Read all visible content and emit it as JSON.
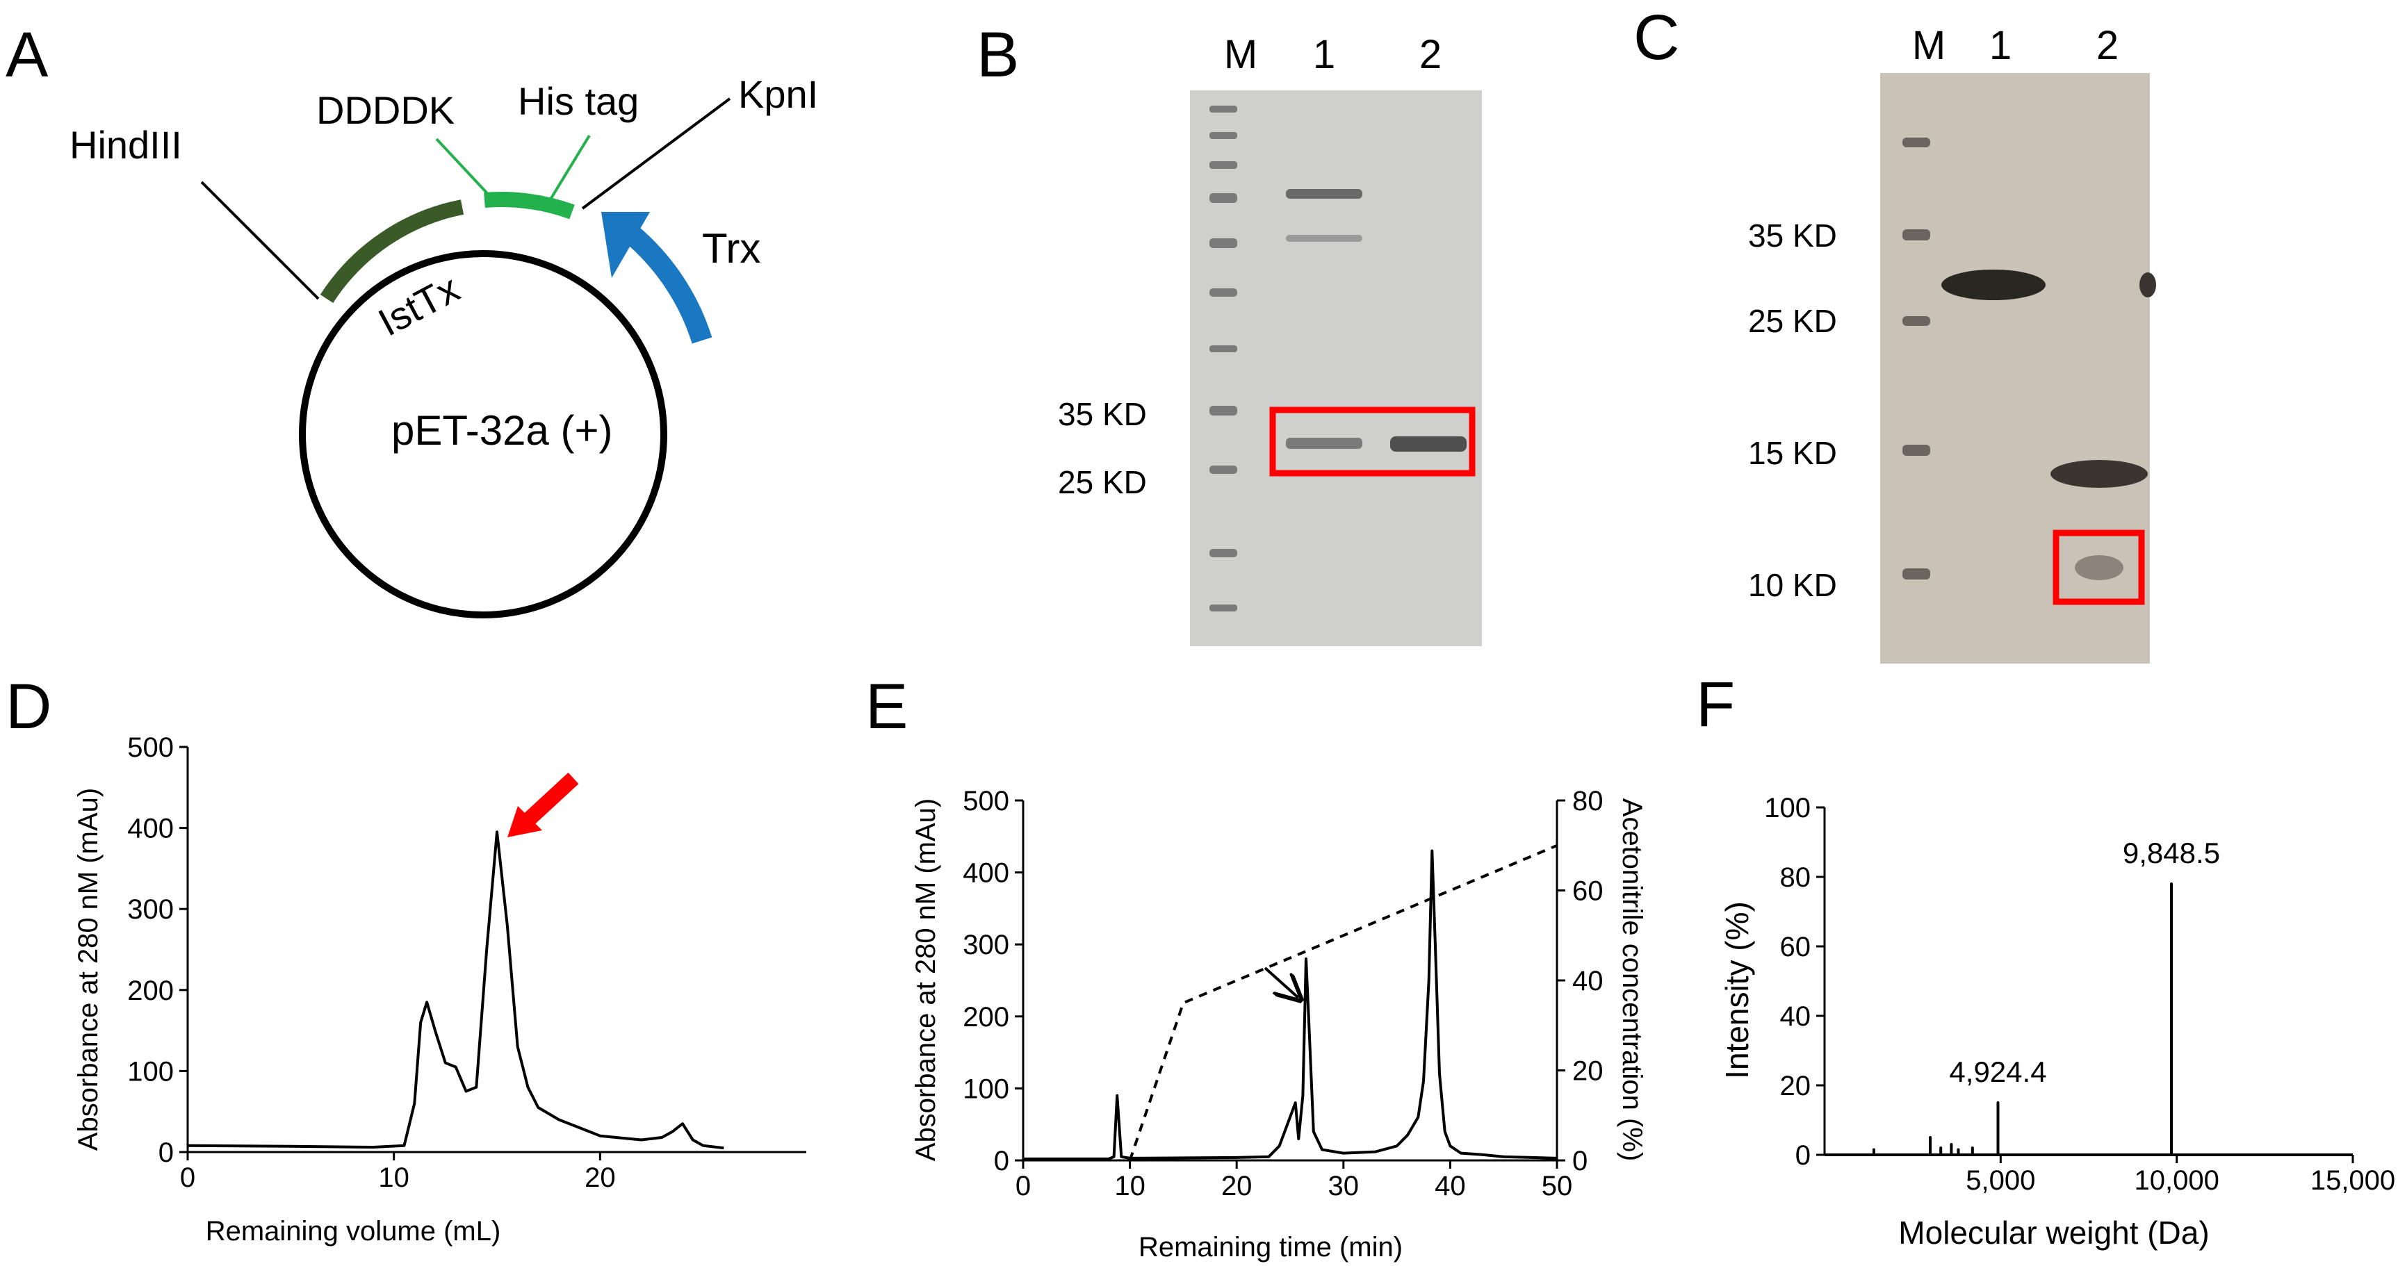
{
  "panels": {
    "A": {
      "letter": "A",
      "plasmid": "pET-32a (+)",
      "labels": {
        "hindiii": "HindIII",
        "ddddk": "DDDDK",
        "his_tag": "His tag",
        "kpni": "KpnI",
        "isttx": "IstTx",
        "trx": "Trx"
      },
      "colors": {
        "isttx": "#3a5a28",
        "tag": "#22b14c",
        "trx": "#1a78c2"
      }
    },
    "B": {
      "letter": "B",
      "lanes": [
        "M",
        "1",
        "2"
      ],
      "markers": [
        "35 KD",
        "25 KD"
      ]
    },
    "C": {
      "letter": "C",
      "lanes": [
        "M",
        "1",
        "2"
      ],
      "markers": [
        "35 KD",
        "25 KD",
        "15 KD",
        "10 KD"
      ]
    },
    "D": {
      "letter": "D"
    },
    "E": {
      "letter": "E"
    },
    "F": {
      "letter": "F"
    }
  },
  "chart_data": [
    {
      "panel": "D",
      "type": "line",
      "xlabel": "Remaining volume (mL)",
      "ylabel": "Absorbance at 280 nM (mAu)",
      "xlim": [
        0,
        30
      ],
      "ylim": [
        0,
        500
      ],
      "xticks": [
        "0",
        "10",
        "20"
      ],
      "yticks": [
        "0",
        "100",
        "200",
        "300",
        "400",
        "500"
      ],
      "annotation": "red arrow pointing at peak ~15 mL",
      "series": [
        {
          "name": "A280",
          "x": [
            0,
            5,
            9,
            10.5,
            11,
            11.3,
            11.6,
            12,
            12.5,
            13,
            13.5,
            14,
            14.5,
            15,
            15.5,
            16,
            16.5,
            17,
            18,
            19,
            20,
            22,
            23,
            23.5,
            24,
            24.5,
            25,
            26
          ],
          "y": [
            8,
            7,
            6,
            8,
            60,
            160,
            185,
            150,
            110,
            105,
            75,
            80,
            250,
            395,
            280,
            130,
            80,
            55,
            40,
            30,
            20,
            15,
            18,
            25,
            35,
            15,
            8,
            5
          ]
        }
      ]
    },
    {
      "panel": "E",
      "type": "line",
      "xlabel": "Remaining time (min)",
      "ylabel": "Absorbance at 280 nM (mAu)",
      "y2label": "Acetonitrile concentration (%)",
      "xlim": [
        0,
        50
      ],
      "ylim": [
        0,
        500
      ],
      "y2lim": [
        0,
        80
      ],
      "xticks": [
        "0",
        "10",
        "20",
        "30",
        "40",
        "50"
      ],
      "yticks": [
        "0",
        "100",
        "200",
        "300",
        "400",
        "500"
      ],
      "y2ticks": [
        "0",
        "20",
        "40",
        "60",
        "80"
      ],
      "annotation": "black arrow pointing at peak ~26.5 min",
      "series": [
        {
          "name": "A280",
          "x": [
            0,
            8,
            8.5,
            8.8,
            9.2,
            10,
            20,
            23,
            24,
            25,
            25.5,
            25.8,
            26.2,
            26.5,
            26.8,
            27.2,
            28,
            30,
            33,
            35,
            36,
            37,
            37.5,
            38,
            38.3,
            38.6,
            39,
            39.5,
            40,
            41,
            43,
            45,
            50
          ],
          "y": [
            2,
            2,
            5,
            90,
            5,
            3,
            4,
            5,
            20,
            60,
            80,
            30,
            90,
            280,
            180,
            40,
            15,
            10,
            12,
            20,
            35,
            60,
            110,
            250,
            430,
            300,
            120,
            40,
            20,
            10,
            8,
            5,
            3
          ]
        },
        {
          "name": "Acetonitrile (%)",
          "axis": "right",
          "style": "dashed",
          "x": [
            10,
            15,
            50
          ],
          "y": [
            0,
            35,
            70
          ]
        }
      ]
    },
    {
      "panel": "F",
      "type": "line",
      "xlabel": "Molecular weight (Da)",
      "ylabel": "Intensity (%)",
      "xlim": [
        0,
        15000
      ],
      "ylim": [
        0,
        100
      ],
      "xticks": [
        "5,000",
        "10,000",
        "15,000"
      ],
      "yticks": [
        "0",
        "20",
        "40",
        "60",
        "80",
        "100"
      ],
      "peak_labels": [
        {
          "x": 4924.4,
          "y": 15,
          "label": "4,924.4"
        },
        {
          "x": 9848.5,
          "y": 78,
          "label": "9,848.5"
        }
      ],
      "series": [
        {
          "name": "Intensity",
          "x": [
            0,
            1400,
            1400,
            1400,
            3000,
            3000,
            3000,
            3300,
            3300,
            3300,
            3600,
            3600,
            3600,
            3800,
            3800,
            3800,
            4200,
            4200,
            4200,
            4924,
            4924,
            4924,
            9848,
            9848,
            9848,
            15000
          ],
          "y": [
            0,
            0,
            1.5,
            0,
            0,
            5,
            0,
            0,
            2,
            0,
            0,
            3,
            0,
            0,
            1.5,
            0,
            0,
            2,
            0,
            0,
            15,
            0,
            0,
            78,
            0,
            0
          ]
        }
      ]
    }
  ]
}
